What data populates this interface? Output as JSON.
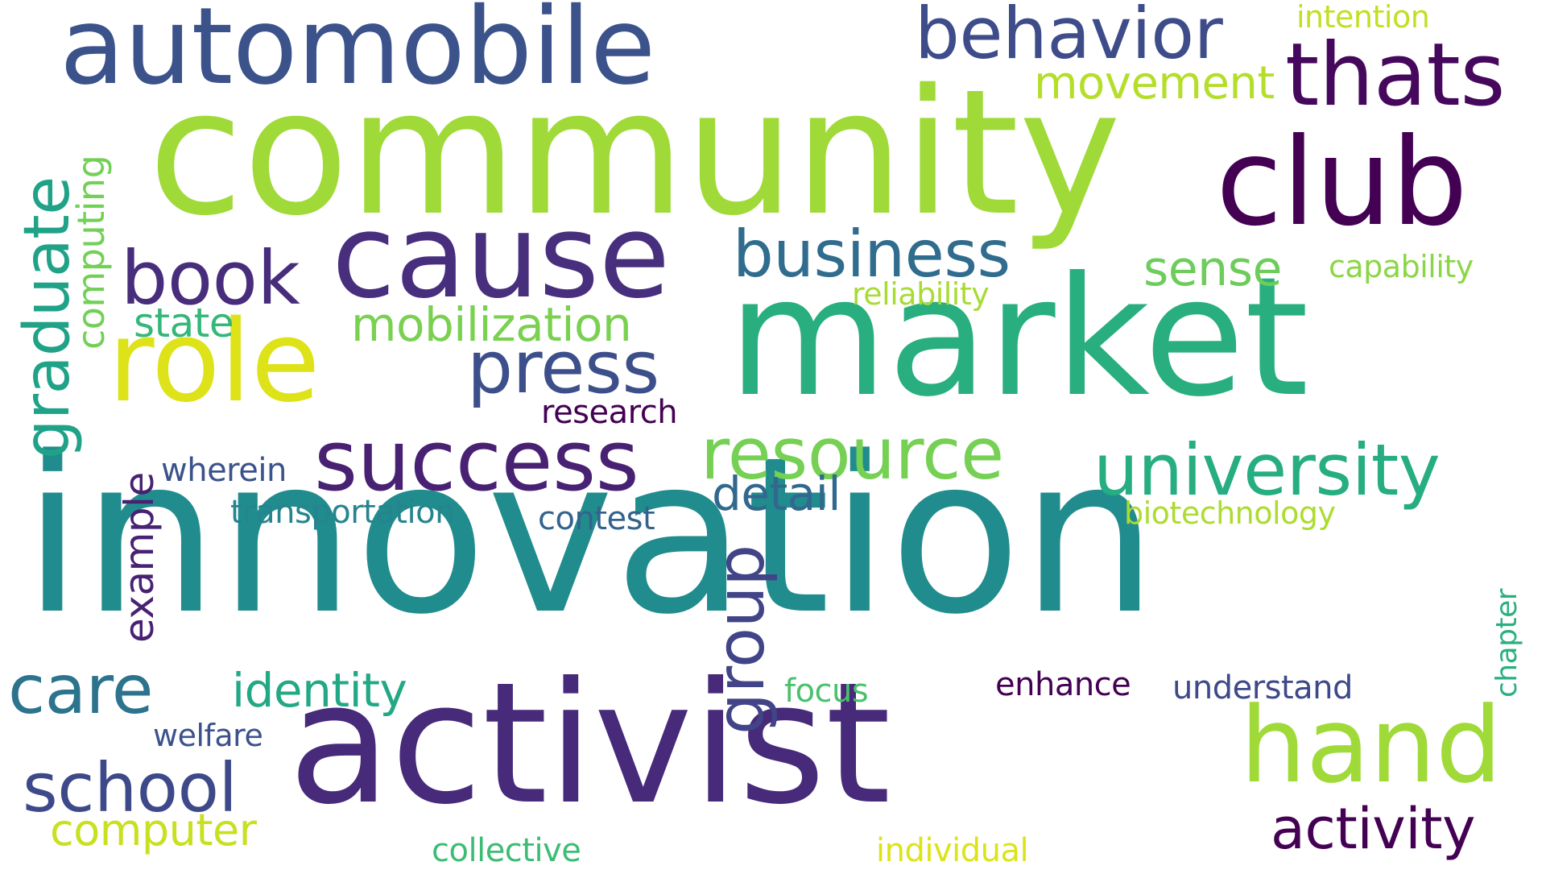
{
  "words": {
    "innovation": {
      "text": "innovation",
      "color": "#218c8d"
    },
    "community": {
      "text": "community",
      "color": "#a0da39"
    },
    "market": {
      "text": "market",
      "color": "#29af7f"
    },
    "activist": {
      "text": "activist",
      "color": "#472a7a"
    },
    "automobile": {
      "text": "automobile",
      "color": "#3b528b"
    },
    "cause": {
      "text": "cause",
      "color": "#472f7d"
    },
    "club": {
      "text": "club",
      "color": "#440154"
    },
    "role": {
      "text": "role",
      "color": "#dde318"
    },
    "thats": {
      "text": "thats",
      "color": "#46085c"
    },
    "success": {
      "text": "success",
      "color": "#482173"
    },
    "hand": {
      "text": "hand",
      "color": "#a0da39"
    },
    "behavior": {
      "text": "behavior",
      "color": "#3e4c8a"
    },
    "business": {
      "text": "business",
      "color": "#2f6c8e"
    },
    "book": {
      "text": "book",
      "color": "#472d7b"
    },
    "press": {
      "text": "press",
      "color": "#3c4f8a"
    },
    "resource": {
      "text": "resource",
      "color": "#75d054"
    },
    "university": {
      "text": "university",
      "color": "#26ad81"
    },
    "school": {
      "text": "school",
      "color": "#3e4989"
    },
    "care": {
      "text": "care",
      "color": "#2c738e"
    },
    "graduate": {
      "text": "graduate",
      "color": "#1fa287"
    },
    "group": {
      "text": "group",
      "color": "#414487"
    },
    "activity": {
      "text": "activity",
      "color": "#440154"
    },
    "mobilization": {
      "text": "mobilization",
      "color": "#7ad151"
    },
    "identity": {
      "text": "identity",
      "color": "#22a884"
    },
    "computer": {
      "text": "computer",
      "color": "#c8e020"
    },
    "sense": {
      "text": "sense",
      "color": "#6ccd5a"
    },
    "movement": {
      "text": "movement",
      "color": "#b5de2b"
    },
    "detail": {
      "text": "detail",
      "color": "#31688e"
    },
    "example": {
      "text": "example",
      "color": "#482173"
    },
    "computing": {
      "text": "computing",
      "color": "#73d056"
    },
    "state": {
      "text": "state",
      "color": "#35b779"
    },
    "research": {
      "text": "research",
      "color": "#440154"
    },
    "transportation": {
      "text": "transportation",
      "color": "#25848e"
    },
    "contest": {
      "text": "contest",
      "color": "#33638d"
    },
    "wherein": {
      "text": "wherein",
      "color": "#3b528b"
    },
    "collective": {
      "text": "collective",
      "color": "#3dbc74"
    },
    "individual": {
      "text": "individual",
      "color": "#dde318"
    },
    "understand": {
      "text": "understand",
      "color": "#3e4989"
    },
    "enhance": {
      "text": "enhance",
      "color": "#440154"
    },
    "focus": {
      "text": "focus",
      "color": "#4ac16d"
    },
    "welfare": {
      "text": "welfare",
      "color": "#3b528b"
    },
    "biotechnology": {
      "text": "biotechnology",
      "color": "#addc30"
    },
    "capability": {
      "text": "capability",
      "color": "#8bd646"
    },
    "reliability": {
      "text": "reliability",
      "color": "#a8db34"
    },
    "intention": {
      "text": "intention",
      "color": "#c2df23"
    },
    "chapter": {
      "text": "chapter",
      "color": "#2ab07f"
    }
  }
}
